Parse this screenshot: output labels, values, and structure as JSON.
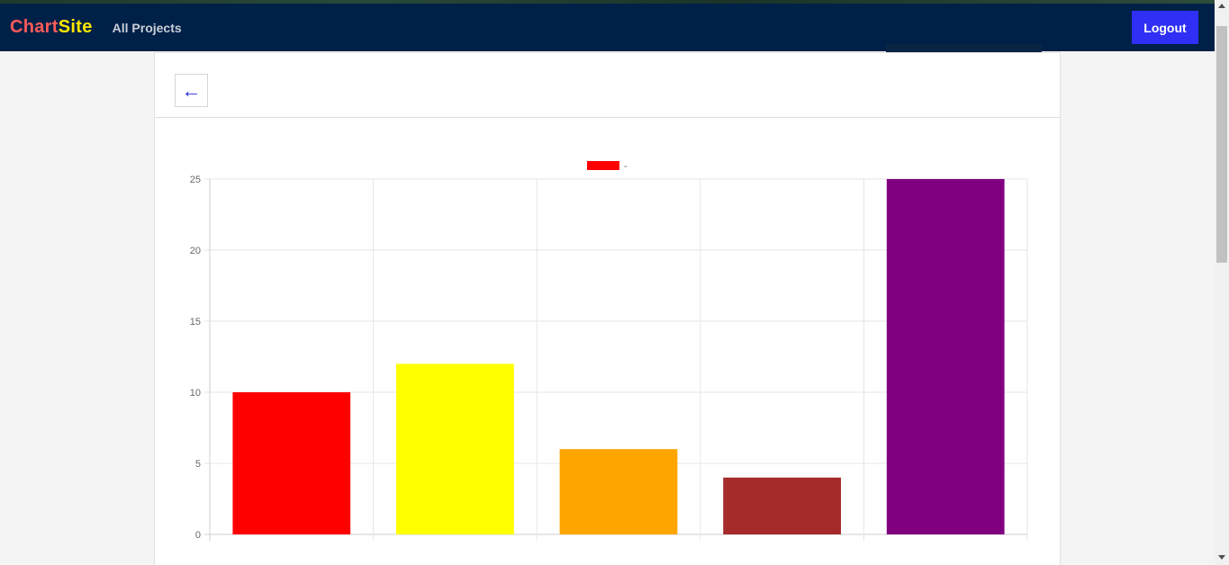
{
  "navbar": {
    "brand_part1": "Chart",
    "brand_part2": "Site",
    "all_projects": "All Projects",
    "logout": "Logout"
  },
  "back_button": {
    "icon": "arrow-left-icon",
    "glyph": "←"
  },
  "colors": {
    "navbar": "#002147",
    "logout": "#2f2ff5",
    "brand_part1": "#ff5a5a",
    "brand_part2": "#ffe600"
  },
  "chart_data": {
    "type": "bar",
    "categories": [
      "",
      "",
      "",
      "",
      ""
    ],
    "series": [
      {
        "name": "-",
        "values": [
          10,
          12,
          6,
          4,
          25
        ]
      }
    ],
    "bar_colors": [
      "#ff0000",
      "#ffff00",
      "#ffa500",
      "#a52a2a",
      "#800080"
    ],
    "ylim": [
      0,
      25
    ],
    "yticks": [
      "0",
      "5",
      "10",
      "15",
      "20",
      "25"
    ],
    "grid": true,
    "legend": "top-center",
    "legend_color": "#ff0000"
  }
}
